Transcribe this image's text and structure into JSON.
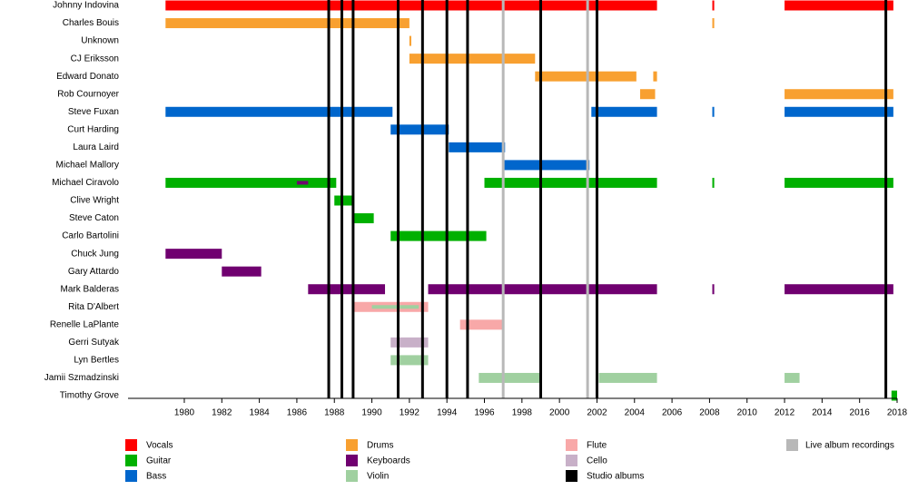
{
  "chart_data": {
    "type": "timeline",
    "xlim": [
      1977,
      2018
    ],
    "xticks": [
      1980,
      1982,
      1984,
      1986,
      1988,
      1990,
      1992,
      1994,
      1996,
      1998,
      2000,
      2002,
      2004,
      2006,
      2008,
      2010,
      2012,
      2014,
      2016,
      2018
    ],
    "roles": [
      {
        "name": "Vocals",
        "color": "#ff0000"
      },
      {
        "name": "Guitar",
        "color": "#00b000"
      },
      {
        "name": "Bass",
        "color": "#0066cc"
      },
      {
        "name": "Drums",
        "color": "#f8a030"
      },
      {
        "name": "Keyboards",
        "color": "#700070"
      },
      {
        "name": "Violin",
        "color": "#a0d0a0"
      },
      {
        "name": "Flute",
        "color": "#f8a8a8"
      },
      {
        "name": "Cello",
        "color": "#c8b0c8"
      }
    ],
    "studio_albums": {
      "name": "Studio albums",
      "color": "#000000",
      "x": [
        1987.7,
        1988.4,
        1989.0,
        1991.4,
        1992.7,
        1994.0,
        1995.1,
        1999.0,
        2002.0,
        2017.4
      ]
    },
    "live_albums": {
      "name": "Live album recordings",
      "color": "#b8b8b8",
      "x": [
        1997.0,
        2001.5
      ]
    },
    "members": [
      {
        "name": "Johnny Indovina",
        "bars": [
          {
            "start": 1979,
            "end": 2005.2,
            "role": "Vocals"
          },
          {
            "start": 2008.15,
            "end": 2008.25,
            "role": "Vocals"
          },
          {
            "start": 2012,
            "end": 2017.8,
            "role": "Vocals"
          }
        ]
      },
      {
        "name": "Charles Bouis",
        "bars": [
          {
            "start": 1979,
            "end": 1992.0,
            "role": "Drums"
          },
          {
            "start": 2008.15,
            "end": 2008.25,
            "role": "Drums"
          }
        ]
      },
      {
        "name": "Unknown",
        "bars": [
          {
            "start": 1992.0,
            "end": 1992.1,
            "role": "Drums"
          }
        ]
      },
      {
        "name": "CJ Eriksson",
        "bars": [
          {
            "start": 1992.0,
            "end": 1998.7,
            "role": "Drums"
          }
        ]
      },
      {
        "name": "Edward Donato",
        "bars": [
          {
            "start": 1998.7,
            "end": 2004.1,
            "role": "Drums"
          },
          {
            "start": 2005.0,
            "end": 2005.2,
            "role": "Drums"
          }
        ]
      },
      {
        "name": "Rob Cournoyer",
        "bars": [
          {
            "start": 2004.3,
            "end": 2005.1,
            "role": "Drums"
          },
          {
            "start": 2012,
            "end": 2017.8,
            "role": "Drums"
          }
        ]
      },
      {
        "name": "Steve Fuxan",
        "bars": [
          {
            "start": 1979,
            "end": 1991.1,
            "role": "Bass"
          },
          {
            "start": 2001.7,
            "end": 2005.2,
            "role": "Bass"
          },
          {
            "start": 2008.15,
            "end": 2008.25,
            "role": "Bass"
          },
          {
            "start": 2012,
            "end": 2017.8,
            "role": "Bass"
          }
        ]
      },
      {
        "name": "Curt Harding",
        "bars": [
          {
            "start": 1991.0,
            "end": 1994.1,
            "role": "Bass"
          }
        ]
      },
      {
        "name": "Laura Laird",
        "bars": [
          {
            "start": 1994.1,
            "end": 1997.1,
            "role": "Bass"
          }
        ]
      },
      {
        "name": "Michael Mallory",
        "bars": [
          {
            "start": 1997.0,
            "end": 2001.6,
            "role": "Bass"
          }
        ]
      },
      {
        "name": "Michael Ciravolo",
        "bars": [
          {
            "start": 1979,
            "end": 1988.1,
            "role": "Guitar"
          },
          {
            "start": 1986.0,
            "end": 1986.6,
            "role": "Keyboards"
          },
          {
            "start": 1996.0,
            "end": 2005.2,
            "role": "Guitar"
          },
          {
            "start": 2008.15,
            "end": 2008.25,
            "role": "Guitar"
          },
          {
            "start": 2012,
            "end": 2017.8,
            "role": "Guitar"
          }
        ]
      },
      {
        "name": "Clive Wright",
        "bars": [
          {
            "start": 1988.0,
            "end": 1989.0,
            "role": "Guitar"
          }
        ]
      },
      {
        "name": "Steve Caton",
        "bars": [
          {
            "start": 1989.0,
            "end": 1990.1,
            "role": "Guitar"
          }
        ]
      },
      {
        "name": "Carlo Bartolini",
        "bars": [
          {
            "start": 1991.0,
            "end": 1996.1,
            "role": "Guitar"
          }
        ]
      },
      {
        "name": "Chuck Jung",
        "bars": [
          {
            "start": 1979,
            "end": 1982.0,
            "role": "Keyboards"
          }
        ]
      },
      {
        "name": "Gary Attardo",
        "bars": [
          {
            "start": 1982.0,
            "end": 1984.1,
            "role": "Keyboards"
          }
        ]
      },
      {
        "name": "Mark Balderas",
        "bars": [
          {
            "start": 1986.6,
            "end": 1990.7,
            "role": "Keyboards"
          },
          {
            "start": 1993.0,
            "end": 2005.2,
            "role": "Keyboards"
          },
          {
            "start": 2008.15,
            "end": 2008.25,
            "role": "Keyboards"
          },
          {
            "start": 2012,
            "end": 2017.8,
            "role": "Keyboards"
          }
        ]
      },
      {
        "name": "Rita D'Albert",
        "bars": [
          {
            "start": 1989.0,
            "end": 1993.0,
            "role": "Flute"
          },
          {
            "start": 1990.0,
            "end": 1992.5,
            "role": "Violin"
          }
        ]
      },
      {
        "name": "Renelle LaPlante",
        "bars": [
          {
            "start": 1994.7,
            "end": 1997.0,
            "role": "Flute"
          }
        ]
      },
      {
        "name": "Gerri Sutyak",
        "bars": [
          {
            "start": 1991.0,
            "end": 1993.0,
            "role": "Cello"
          }
        ]
      },
      {
        "name": "Lyn Bertles",
        "bars": [
          {
            "start": 1991.0,
            "end": 1993.0,
            "role": "Violin"
          }
        ]
      },
      {
        "name": "Jamii Szmadzinski",
        "bars": [
          {
            "start": 1995.7,
            "end": 1999.0,
            "role": "Violin"
          },
          {
            "start": 2002.1,
            "end": 2005.2,
            "role": "Violin"
          },
          {
            "start": 2012,
            "end": 2012.8,
            "role": "Violin"
          }
        ]
      },
      {
        "name": "Timothy Grove",
        "bars": [
          {
            "start": 2017.7,
            "end": 2018,
            "role": "Guitar"
          }
        ]
      }
    ]
  }
}
